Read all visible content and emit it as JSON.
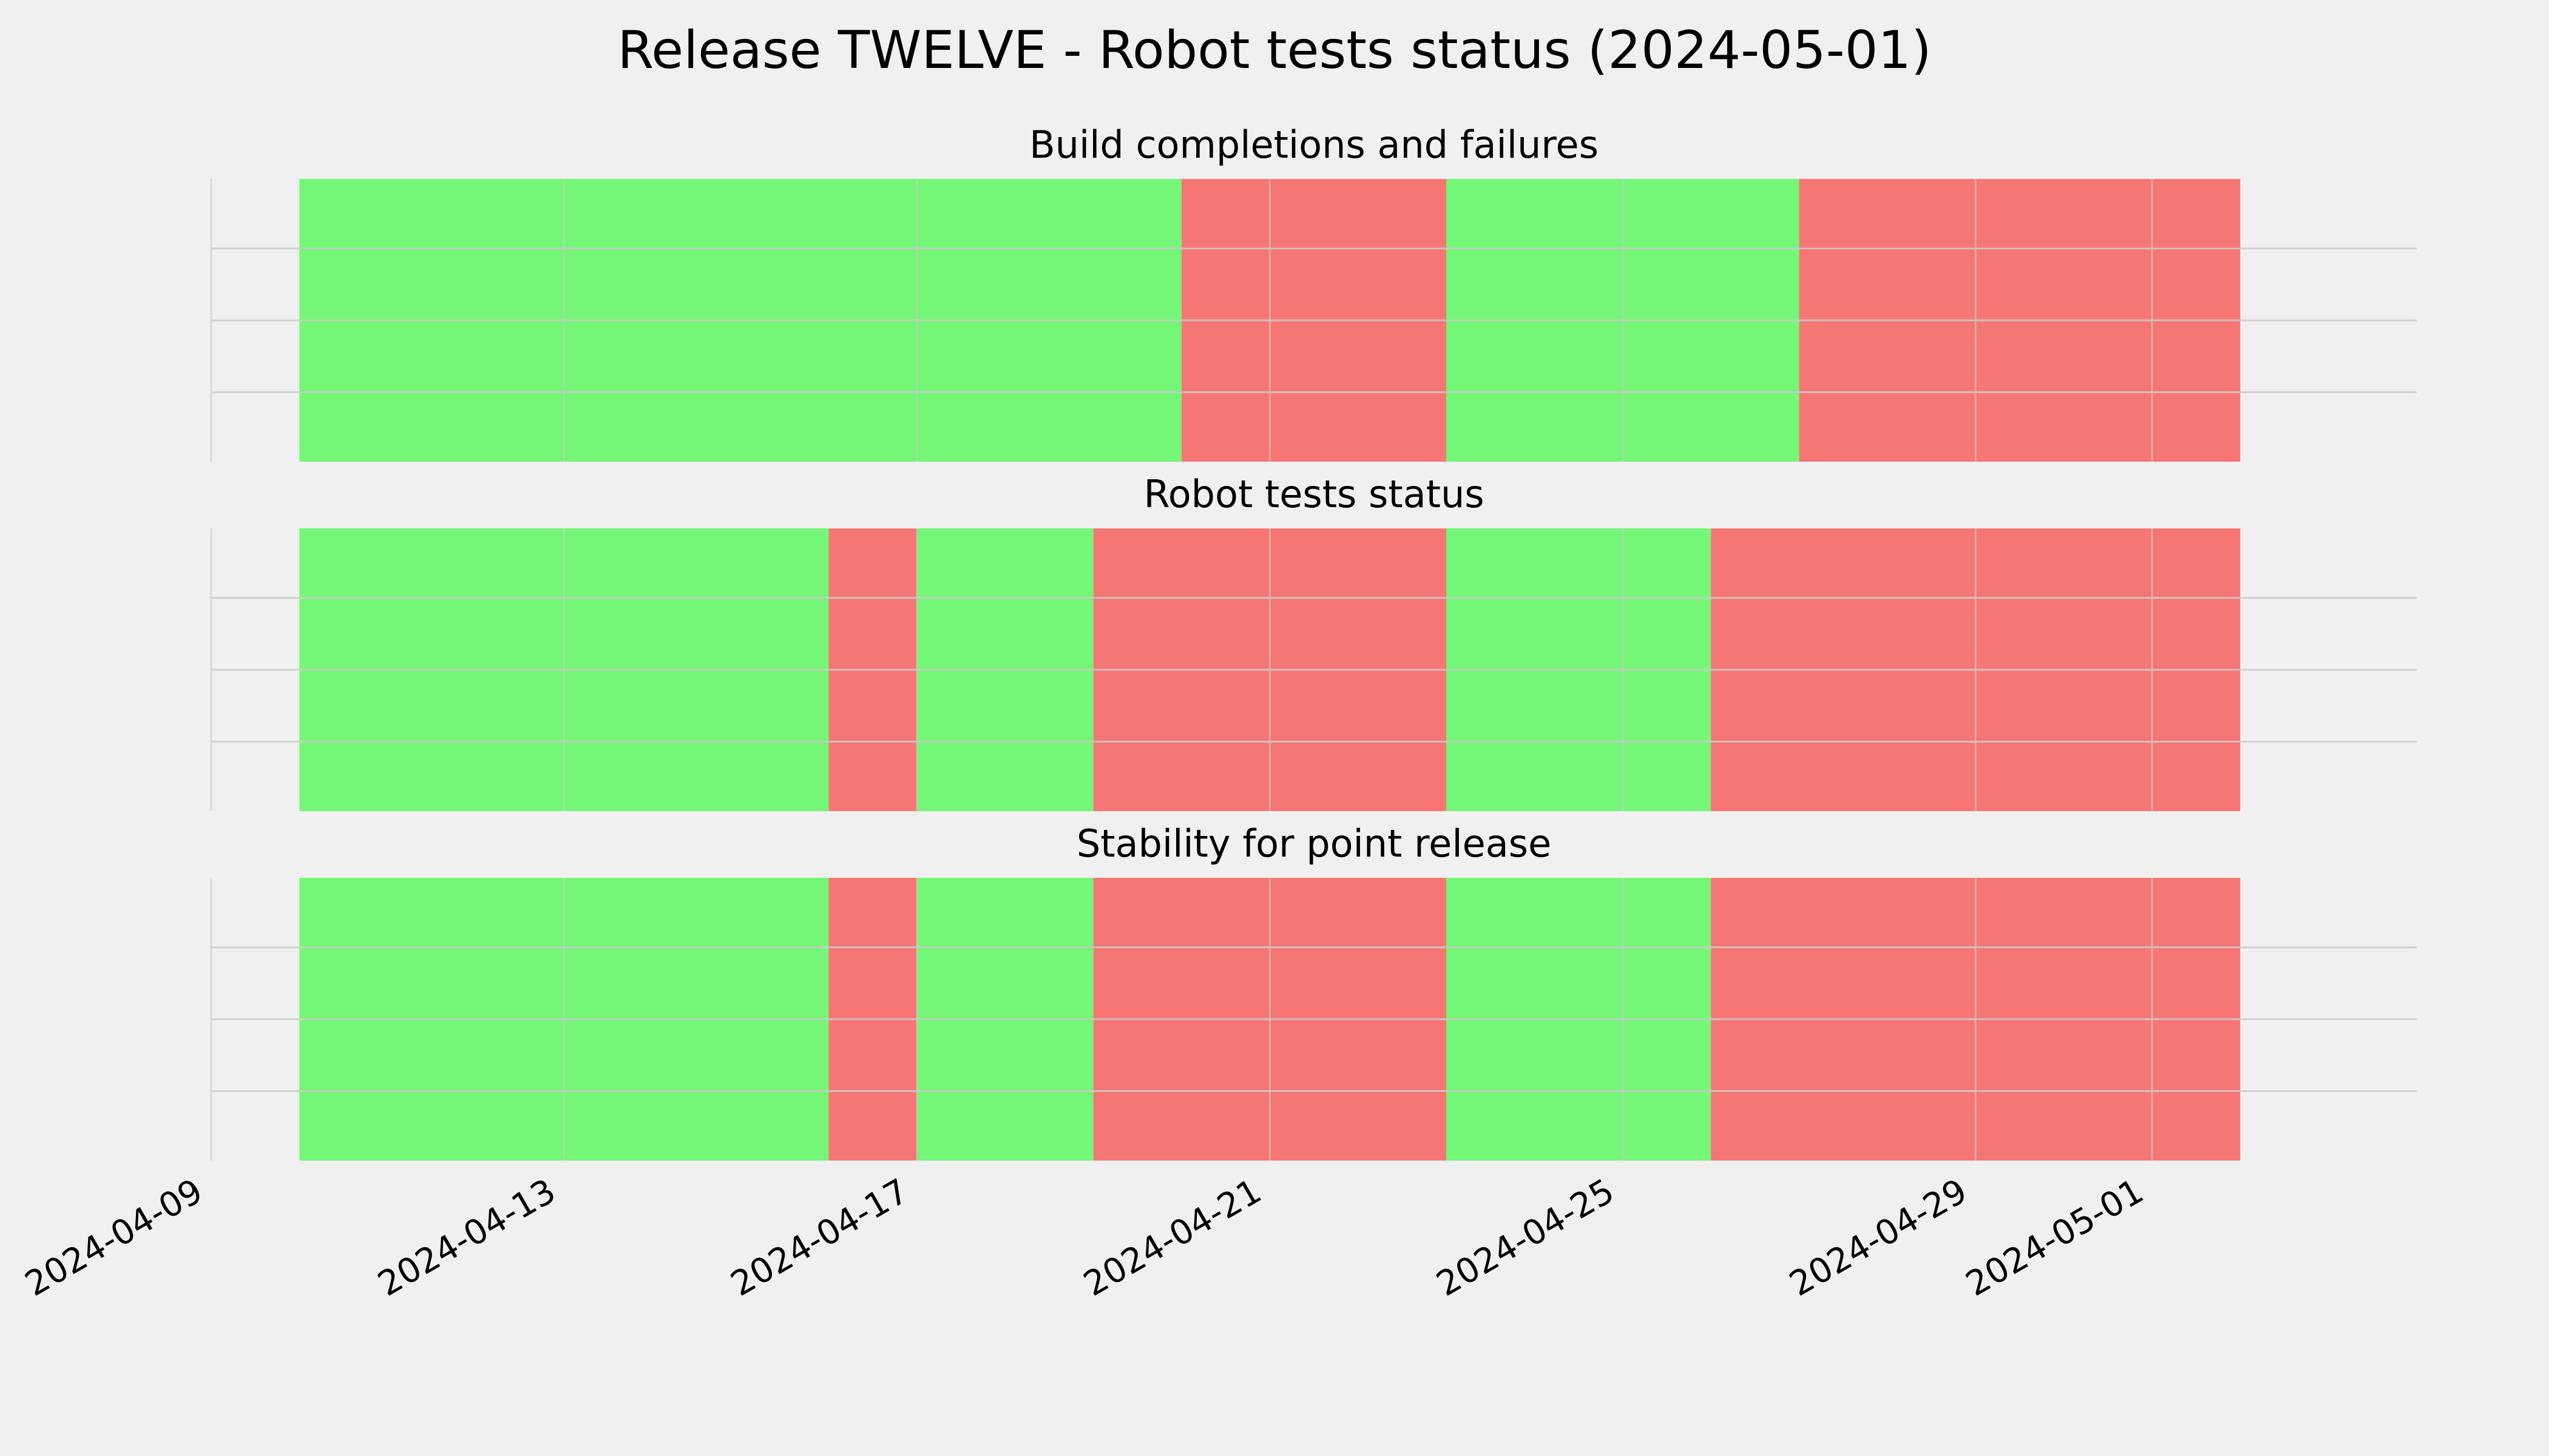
{
  "chart_data": {
    "type": "timeline",
    "title": "Release TWELVE - Robot tests status (2024-05-01)",
    "x_ticks": [
      "2024-04-09",
      "2024-04-13",
      "2024-04-17",
      "2024-04-21",
      "2024-04-25",
      "2024-04-29",
      "2024-05-01"
    ],
    "xlim": [
      "2024-04-09",
      "2024-05-04"
    ],
    "grid": true,
    "colors": {
      "pass": "#74f676",
      "fail": "#f67674",
      "background": "#f0f0f0",
      "grid": "#cbcbcb"
    },
    "panels": [
      {
        "title": "Build completions and failures",
        "segments": [
          {
            "start": "2024-04-10",
            "end": "2024-04-20",
            "status": "pass"
          },
          {
            "start": "2024-04-20",
            "end": "2024-04-23",
            "status": "fail"
          },
          {
            "start": "2024-04-23",
            "end": "2024-04-27",
            "status": "pass"
          },
          {
            "start": "2024-04-27",
            "end": "2024-05-02",
            "status": "fail"
          }
        ]
      },
      {
        "title": "Robot tests status",
        "segments": [
          {
            "start": "2024-04-10",
            "end": "2024-04-16",
            "status": "pass"
          },
          {
            "start": "2024-04-16",
            "end": "2024-04-17",
            "status": "fail"
          },
          {
            "start": "2024-04-17",
            "end": "2024-04-19",
            "status": "pass"
          },
          {
            "start": "2024-04-19",
            "end": "2024-04-23",
            "status": "fail"
          },
          {
            "start": "2024-04-23",
            "end": "2024-04-26",
            "status": "pass"
          },
          {
            "start": "2024-04-26",
            "end": "2024-05-02",
            "status": "fail"
          }
        ]
      },
      {
        "title": "Stability for point release",
        "segments": [
          {
            "start": "2024-04-10",
            "end": "2024-04-16",
            "status": "pass"
          },
          {
            "start": "2024-04-16",
            "end": "2024-04-17",
            "status": "fail"
          },
          {
            "start": "2024-04-17",
            "end": "2024-04-19",
            "status": "pass"
          },
          {
            "start": "2024-04-19",
            "end": "2024-04-23",
            "status": "fail"
          },
          {
            "start": "2024-04-23",
            "end": "2024-04-26",
            "status": "pass"
          },
          {
            "start": "2024-04-26",
            "end": "2024-05-02",
            "status": "fail"
          }
        ]
      }
    ]
  }
}
